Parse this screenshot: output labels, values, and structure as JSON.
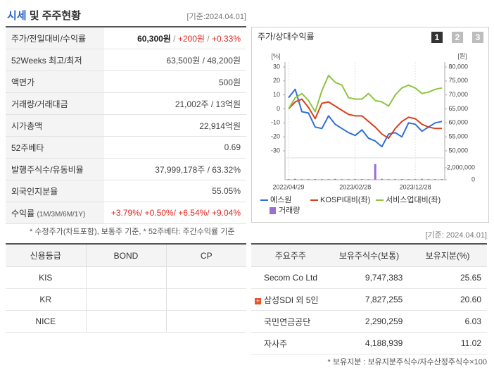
{
  "header": {
    "title_highlight": "시세",
    "title_rest": "및 주주현황",
    "date": "[기준:2024.04.01]"
  },
  "summary": {
    "rows": [
      {
        "label": "주가/전일대비/수익률",
        "parts": [
          "60,300원",
          " / ",
          "+200원",
          " / ",
          "+0.33%"
        ]
      },
      {
        "label": "52Weeks 최고/최저",
        "value": "63,500원 / 48,200원"
      },
      {
        "label": "액면가",
        "value": "500원"
      },
      {
        "label": "거래량/거래대금",
        "value": "21,002주 / 13억원"
      },
      {
        "label": "시가총액",
        "value": "22,914억원"
      },
      {
        "label": "52주베타",
        "value": "0.69"
      },
      {
        "label": "발행주식수/유동비율",
        "value": "37,999,178주 / 63.32%"
      },
      {
        "label": "외국인지분율",
        "value": "55.05%"
      },
      {
        "label": "수익률",
        "sublabel": "(1M/3M/6M/1Y)",
        "value": "+3.79%/ +0.50%/ +6.54%/ +9.04%"
      }
    ],
    "note": "* 수정주가(차트포함), 보통주 기준, * 52주베타: 주간수익률 기준"
  },
  "chart_panel": {
    "title": "주가/상대수익률",
    "tabs": [
      "1",
      "2",
      "3"
    ]
  },
  "chart_data": {
    "type": "line",
    "y_unit": "[%]",
    "y2_unit": "[원]",
    "categories": [
      "2022/04/29",
      null,
      null,
      null,
      null,
      null,
      null,
      null,
      null,
      null,
      "2023/02/28",
      null,
      null,
      null,
      null,
      null,
      null,
      null,
      null,
      "2023/12/28",
      null,
      null,
      null,
      null
    ],
    "ylim": [
      -30,
      30
    ],
    "yticks": [
      30,
      20,
      10,
      0,
      -10,
      -20,
      -30
    ],
    "y2lim": [
      50000,
      80000
    ],
    "y2ticks": [
      {
        "value": 80000,
        "label": "80,000"
      },
      {
        "value": 75000,
        "label": "75,000"
      },
      {
        "value": 70000,
        "label": "70,000"
      },
      {
        "value": 65000,
        "label": "65,000"
      },
      {
        "value": 60000,
        "label": "60,000"
      },
      {
        "value": 55000,
        "label": "55,000"
      },
      {
        "value": 50000,
        "label": "50,000"
      }
    ],
    "y3lim": [
      0,
      2800000
    ],
    "y3ticks": [
      {
        "value": 2000000,
        "label": "2,000,000"
      },
      0
    ],
    "grid": false,
    "legend": "bottom",
    "series": [
      {
        "name": "에스원",
        "color": "#2f6fd6",
        "axis": "y",
        "values": [
          8,
          14,
          -2,
          -3,
          -13,
          -14,
          -5,
          -11,
          -14,
          -17,
          -19,
          -15,
          -21,
          -23,
          -27,
          -18,
          -17,
          -20,
          -10,
          -11,
          -16,
          -13,
          -10,
          -9
        ]
      },
      {
        "name": "KOSPI대비(좌)",
        "color": "#d9401f",
        "axis": "y",
        "values": [
          0,
          5,
          7,
          1,
          -7,
          4,
          5,
          2,
          -1,
          -4,
          -5,
          -5,
          -9,
          -13,
          -18,
          -21,
          -14,
          -9,
          -6,
          -7,
          -11,
          -13,
          -14,
          -14
        ]
      },
      {
        "name": "서비스업대비(좌)",
        "color": "#8cc63f",
        "axis": "y",
        "values": [
          0,
          8,
          11,
          6,
          -2,
          13,
          24,
          19,
          17,
          8,
          7,
          7,
          11,
          6,
          5,
          2,
          10,
          15,
          17,
          15,
          11,
          12,
          14,
          15
        ]
      },
      {
        "name": "거래량",
        "color": "#9a6fd0",
        "axis": "y3",
        "type": "bar",
        "values": [
          100000,
          150000,
          100000,
          100000,
          120000,
          100000,
          100000,
          150000,
          100000,
          100000,
          100000,
          120000,
          100000,
          2600000,
          150000,
          100000,
          100000,
          120000,
          100000,
          100000,
          150000,
          100000,
          100000,
          100000
        ]
      }
    ]
  },
  "credit_table": {
    "headers": [
      "신용등급",
      "BOND",
      "CP"
    ],
    "rows": [
      [
        "KIS"
      ],
      [
        "KR"
      ],
      [
        "NICE"
      ]
    ]
  },
  "shareholders": {
    "date": "[기준: 2024.04.01]",
    "headers": [
      "주요주주",
      "보유주식수(보통)",
      "보유지분(%)"
    ],
    "rows": [
      [
        "Secom Co Ltd",
        "9,747,383",
        "25.65"
      ],
      [
        "삼성SDI 외 5인",
        "7,827,255",
        "20.60"
      ],
      [
        "국민연금공단",
        "2,290,259",
        "6.03"
      ],
      [
        "자사주",
        "4,188,939",
        "11.02"
      ]
    ],
    "note": "* 보유지분 : 보유지분주식수/자수산정주식수×100"
  }
}
